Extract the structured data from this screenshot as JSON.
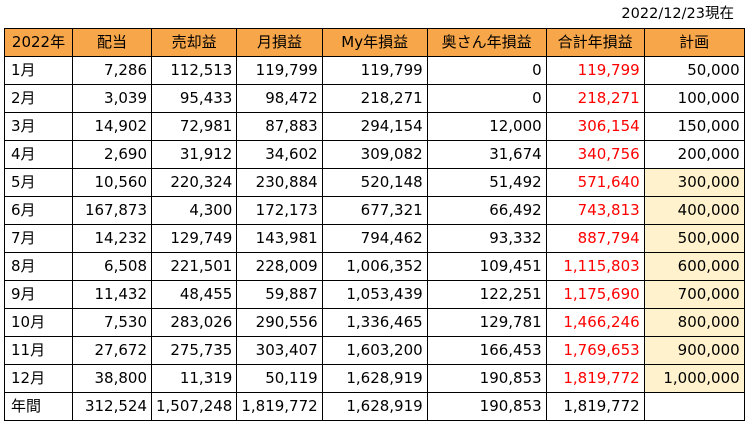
{
  "date": "2022/12/23現在",
  "headers": [
    "2022年",
    "配当",
    "売却益",
    "月損益",
    "My年損益",
    "奥さん年損益",
    "合計年損益",
    "計画"
  ],
  "rows": [
    {
      "month": "1月",
      "dividend": "7,286",
      "sale": "112,513",
      "monthly": "119,799",
      "my": "119,799",
      "wife": "0",
      "total": "119,799",
      "plan": "50,000",
      "plan_hl": false
    },
    {
      "month": "2月",
      "dividend": "3,039",
      "sale": "95,433",
      "monthly": "98,472",
      "my": "218,271",
      "wife": "0",
      "total": "218,271",
      "plan": "100,000",
      "plan_hl": false
    },
    {
      "month": "3月",
      "dividend": "14,902",
      "sale": "72,981",
      "monthly": "87,883",
      "my": "294,154",
      "wife": "12,000",
      "total": "306,154",
      "plan": "150,000",
      "plan_hl": false
    },
    {
      "month": "4月",
      "dividend": "2,690",
      "sale": "31,912",
      "monthly": "34,602",
      "my": "309,082",
      "wife": "31,674",
      "total": "340,756",
      "plan": "200,000",
      "plan_hl": false
    },
    {
      "month": "5月",
      "dividend": "10,560",
      "sale": "220,324",
      "monthly": "230,884",
      "my": "520,148",
      "wife": "51,492",
      "total": "571,640",
      "plan": "300,000",
      "plan_hl": true
    },
    {
      "month": "6月",
      "dividend": "167,873",
      "sale": "4,300",
      "monthly": "172,173",
      "my": "677,321",
      "wife": "66,492",
      "total": "743,813",
      "plan": "400,000",
      "plan_hl": true
    },
    {
      "month": "7月",
      "dividend": "14,232",
      "sale": "129,749",
      "monthly": "143,981",
      "my": "794,462",
      "wife": "93,332",
      "total": "887,794",
      "plan": "500,000",
      "plan_hl": true
    },
    {
      "month": "8月",
      "dividend": "6,508",
      "sale": "221,501",
      "monthly": "228,009",
      "my": "1,006,352",
      "wife": "109,451",
      "total": "1,115,803",
      "plan": "600,000",
      "plan_hl": true
    },
    {
      "month": "9月",
      "dividend": "11,432",
      "sale": "48,455",
      "monthly": "59,887",
      "my": "1,053,439",
      "wife": "122,251",
      "total": "1,175,690",
      "plan": "700,000",
      "plan_hl": true
    },
    {
      "month": "10月",
      "dividend": "7,530",
      "sale": "283,026",
      "monthly": "290,556",
      "my": "1,336,465",
      "wife": "129,781",
      "total": "1,466,246",
      "plan": "800,000",
      "plan_hl": true
    },
    {
      "month": "11月",
      "dividend": "27,672",
      "sale": "275,735",
      "monthly": "303,407",
      "my": "1,603,200",
      "wife": "166,453",
      "total": "1,769,653",
      "plan": "900,000",
      "plan_hl": true
    },
    {
      "month": "12月",
      "dividend": "38,800",
      "sale": "11,319",
      "monthly": "50,119",
      "my": "1,628,919",
      "wife": "190,853",
      "total": "1,819,772",
      "plan": "1,000,000",
      "plan_hl": true
    }
  ],
  "totals": {
    "label": "年間",
    "dividend": "312,524",
    "sale": "1,507,248",
    "monthly": "1,819,772",
    "my": "1,628,919",
    "wife": "190,853",
    "total": "1,819,772",
    "plan": ""
  },
  "colors": {
    "header_bg": "#f7a64a",
    "total_text": "#ff0000",
    "plan_highlight": "#fff2cc"
  }
}
